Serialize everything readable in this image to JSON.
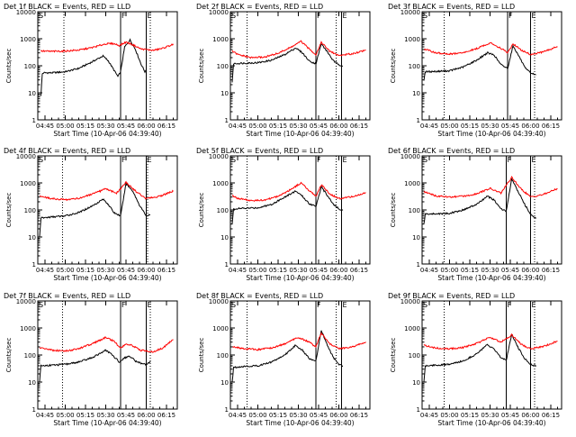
{
  "page": {
    "background": "#ffffff",
    "colors": {
      "events": "#000000",
      "lld": "#ff0000",
      "axes": "#000000"
    }
  },
  "shared": {
    "xlabel": "Start Time (10-Apr-06 04:39:40)",
    "ylabel": "Counts/sec",
    "x_tick_labels": [
      "04:45",
      "05:00",
      "05:15",
      "05:30",
      "05:45",
      "06:00",
      "06:15"
    ],
    "y_tick_labels": [
      "1",
      "10",
      "100",
      "1000",
      "10000"
    ]
  },
  "chart_data": [
    {
      "type": "line",
      "title": "Det 1f BLACK = Events, RED = LLD",
      "xlabel": "Start Time (10-Apr-06 04:39:40)",
      "ylabel": "Counts/sec",
      "x_units": "minutes",
      "x_ticks": [
        "04:45",
        "05:00",
        "05:15",
        "05:30",
        "05:45",
        "06:00",
        "06:15"
      ],
      "xlim": [
        "04:39:40",
        "06:23:00"
      ],
      "ylim": [
        1,
        10000
      ],
      "y_scale": "log",
      "grid": false,
      "legend": "none",
      "dotted_vlines": [
        "04:59",
        "06:03"
      ],
      "solid_vlines": [
        "05:41",
        "06:00"
      ],
      "markers_top": [
        "F",
        "E"
      ],
      "start_marker": "S",
      "series": [
        {
          "name": "BLACK = Events",
          "color": "#000000",
          "x": [
            "04:42",
            "04:43",
            "04:44",
            "04:50",
            "05:00",
            "05:10",
            "05:20",
            "05:28",
            "05:32",
            "05:36",
            "05:39",
            "05:41",
            "05:44",
            "05:48",
            "05:52",
            "05:56",
            "05:59",
            "06:00"
          ],
          "y": [
            8,
            50,
            55,
            55,
            60,
            80,
            140,
            230,
            150,
            70,
            40,
            60,
            500,
            900,
            400,
            120,
            60,
            65
          ]
        },
        {
          "name": "RED = LLD",
          "color": "#ff0000",
          "x": [
            "04:42",
            "04:50",
            "05:00",
            "05:10",
            "05:20",
            "05:30",
            "05:36",
            "05:40",
            "05:45",
            "05:50",
            "05:56",
            "06:05",
            "06:12",
            "06:20"
          ],
          "y": [
            350,
            340,
            350,
            380,
            470,
            650,
            660,
            560,
            750,
            600,
            420,
            370,
            440,
            620
          ]
        }
      ]
    },
    {
      "type": "line",
      "title": "Det 2f BLACK = Events, RED = LLD",
      "xlabel": "Start Time (10-Apr-06 04:39:40)",
      "ylabel": "Counts/sec",
      "x_units": "minutes",
      "x_ticks": [
        "04:45",
        "05:00",
        "05:15",
        "05:30",
        "05:45",
        "06:00",
        "06:15"
      ],
      "xlim": [
        "04:39:40",
        "06:23:00"
      ],
      "ylim": [
        1,
        10000
      ],
      "y_scale": "log",
      "grid": false,
      "legend": "none",
      "dotted_vlines": [
        "04:52",
        "05:58"
      ],
      "solid_vlines": [
        "05:43",
        "06:02"
      ],
      "markers_top": [
        "F",
        "E"
      ],
      "start_marker": "S",
      "series": [
        {
          "name": "BLACK = Events",
          "color": "#000000",
          "x": [
            "04:41",
            "04:42",
            "04:50",
            "05:00",
            "05:10",
            "05:20",
            "05:28",
            "05:33",
            "05:38",
            "05:43",
            "05:47",
            "05:52",
            "05:56",
            "06:00",
            "06:03"
          ],
          "y": [
            25,
            120,
            125,
            130,
            160,
            260,
            460,
            300,
            150,
            120,
            650,
            300,
            150,
            110,
            100
          ]
        },
        {
          "name": "RED = LLD",
          "color": "#ff0000",
          "x": [
            "04:41",
            "04:45",
            "04:55",
            "05:05",
            "05:15",
            "05:25",
            "05:32",
            "05:38",
            "05:43",
            "05:47",
            "05:53",
            "06:00",
            "06:10",
            "06:20"
          ],
          "y": [
            350,
            260,
            200,
            210,
            290,
            500,
            800,
            420,
            260,
            750,
            350,
            240,
            280,
            380
          ]
        }
      ]
    },
    {
      "type": "line",
      "title": "Det 3f BLACK = Events, RED = LLD",
      "xlabel": "Start Time (10-Apr-06 04:39:40)",
      "ylabel": "Counts/sec",
      "x_units": "minutes",
      "x_ticks": [
        "04:45",
        "05:00",
        "05:15",
        "05:30",
        "05:45",
        "06:00",
        "06:15"
      ],
      "xlim": [
        "04:39:40",
        "06:23:00"
      ],
      "ylim": [
        1,
        10000
      ],
      "y_scale": "log",
      "grid": false,
      "legend": "none",
      "dotted_vlines": [
        "04:56",
        "06:03"
      ],
      "solid_vlines": [
        "05:43",
        "06:00"
      ],
      "markers_top": [
        "F",
        "E"
      ],
      "start_marker": "S",
      "series": [
        {
          "name": "BLACK = Events",
          "color": "#000000",
          "x": [
            "04:41",
            "04:42",
            "04:50",
            "05:00",
            "05:10",
            "05:20",
            "05:28",
            "05:33",
            "05:38",
            "05:43",
            "05:47",
            "05:52",
            "05:56",
            "06:00",
            "06:04"
          ],
          "y": [
            30,
            60,
            62,
            65,
            90,
            160,
            300,
            250,
            110,
            80,
            550,
            200,
            80,
            55,
            45
          ]
        },
        {
          "name": "RED = LLD",
          "color": "#ff0000",
          "x": [
            "04:41",
            "04:50",
            "05:00",
            "05:10",
            "05:20",
            "05:30",
            "05:38",
            "05:43",
            "05:47",
            "05:53",
            "06:00",
            "06:10",
            "06:20"
          ],
          "y": [
            420,
            300,
            270,
            300,
            430,
            700,
            450,
            300,
            650,
            380,
            260,
            330,
            520
          ]
        }
      ]
    },
    {
      "type": "line",
      "title": "Det 4f BLACK = Events, RED = LLD",
      "xlabel": "Start Time (10-Apr-06 04:39:40)",
      "ylabel": "Counts/sec",
      "x_units": "minutes",
      "x_ticks": [
        "04:45",
        "05:00",
        "05:15",
        "05:30",
        "05:45",
        "06:00",
        "06:15"
      ],
      "xlim": [
        "04:39:40",
        "06:23:00"
      ],
      "ylim": [
        1,
        10000
      ],
      "y_scale": "log",
      "grid": false,
      "legend": "none",
      "dotted_vlines": [
        "04:58",
        "06:01"
      ],
      "solid_vlines": [
        "05:41",
        "06:00"
      ],
      "markers_top": [
        "F",
        "E"
      ],
      "start_marker": "S",
      "series": [
        {
          "name": "BLACK = Events",
          "color": "#000000",
          "x": [
            "04:41",
            "04:42",
            "04:50",
            "05:00",
            "05:10",
            "05:20",
            "05:28",
            "05:32",
            "05:36",
            "05:41",
            "05:45",
            "05:50",
            "05:55",
            "06:00",
            "06:03"
          ],
          "y": [
            10,
            50,
            55,
            60,
            80,
            140,
            250,
            160,
            80,
            60,
            950,
            500,
            150,
            60,
            65
          ]
        },
        {
          "name": "RED = LLD",
          "color": "#ff0000",
          "x": [
            "04:41",
            "04:50",
            "05:00",
            "05:10",
            "05:20",
            "05:30",
            "05:38",
            "05:45",
            "05:52",
            "06:00",
            "06:10",
            "06:20"
          ],
          "y": [
            330,
            260,
            240,
            270,
            380,
            600,
            420,
            1050,
            500,
            260,
            320,
            500
          ]
        }
      ]
    },
    {
      "type": "line",
      "title": "Det 5f BLACK = Events, RED = LLD",
      "xlabel": "Start Time (10-Apr-06 04:39:40)",
      "ylabel": "Counts/sec",
      "x_units": "minutes",
      "x_ticks": [
        "04:45",
        "05:00",
        "05:15",
        "05:30",
        "05:45",
        "06:00",
        "06:15"
      ],
      "xlim": [
        "04:39:40",
        "06:23:00"
      ],
      "ylim": [
        1,
        10000
      ],
      "y_scale": "log",
      "grid": false,
      "legend": "none",
      "dotted_vlines": [
        "04:52",
        "05:58"
      ],
      "solid_vlines": [
        "05:43",
        "06:02"
      ],
      "markers_top": [
        "F",
        "E"
      ],
      "start_marker": "S",
      "series": [
        {
          "name": "BLACK = Events",
          "color": "#000000",
          "x": [
            "04:41",
            "04:42",
            "04:50",
            "05:00",
            "05:10",
            "05:20",
            "05:28",
            "05:33",
            "05:38",
            "05:43",
            "05:47",
            "05:52",
            "05:56",
            "06:00",
            "06:03"
          ],
          "y": [
            30,
            110,
            115,
            120,
            160,
            300,
            500,
            320,
            170,
            140,
            700,
            320,
            160,
            110,
            100
          ]
        },
        {
          "name": "RED = LLD",
          "color": "#ff0000",
          "x": [
            "04:41",
            "04:45",
            "04:55",
            "05:05",
            "05:15",
            "05:25",
            "05:32",
            "05:38",
            "05:43",
            "05:47",
            "05:53",
            "06:00",
            "06:10",
            "06:20"
          ],
          "y": [
            340,
            270,
            220,
            230,
            320,
            600,
            1000,
            520,
            320,
            850,
            400,
            260,
            310,
            430
          ]
        }
      ]
    },
    {
      "type": "line",
      "title": "Det 6f BLACK = Events, RED = LLD",
      "xlabel": "Start Time (10-Apr-06 04:39:40)",
      "ylabel": "Counts/sec",
      "x_units": "minutes",
      "x_ticks": [
        "04:45",
        "05:00",
        "05:15",
        "05:30",
        "05:45",
        "06:00",
        "06:15"
      ],
      "xlim": [
        "04:39:40",
        "06:23:00"
      ],
      "ylim": [
        1,
        10000
      ],
      "y_scale": "log",
      "grid": false,
      "legend": "none",
      "dotted_vlines": [
        "04:56",
        "06:03"
      ],
      "solid_vlines": [
        "05:42",
        "06:00"
      ],
      "markers_top": [
        "F",
        "E"
      ],
      "start_marker": "S",
      "series": [
        {
          "name": "BLACK = Events",
          "color": "#000000",
          "x": [
            "04:41",
            "04:42",
            "04:50",
            "05:00",
            "05:10",
            "05:20",
            "05:28",
            "05:33",
            "05:38",
            "05:42",
            "05:46",
            "05:51",
            "05:56",
            "06:00",
            "06:04"
          ],
          "y": [
            30,
            70,
            72,
            75,
            100,
            160,
            320,
            230,
            110,
            90,
            1400,
            450,
            150,
            70,
            50
          ]
        },
        {
          "name": "RED = LLD",
          "color": "#ff0000",
          "x": [
            "04:41",
            "04:50",
            "05:00",
            "05:10",
            "05:20",
            "05:30",
            "05:38",
            "05:46",
            "05:53",
            "06:00",
            "06:10",
            "06:20"
          ],
          "y": [
            470,
            330,
            300,
            320,
            400,
            620,
            420,
            1600,
            600,
            300,
            380,
            620
          ]
        }
      ]
    },
    {
      "type": "line",
      "title": "Det 7f BLACK = Events, RED = LLD",
      "xlabel": "Start Time (10-Apr-06 04:39:40)",
      "ylabel": "Counts/sec",
      "x_units": "minutes",
      "x_ticks": [
        "04:45",
        "05:00",
        "05:15",
        "05:30",
        "05:45",
        "06:00",
        "06:15"
      ],
      "xlim": [
        "04:39:40",
        "06:23:00"
      ],
      "ylim": [
        1,
        10000
      ],
      "y_scale": "log",
      "grid": false,
      "legend": "none",
      "dotted_vlines": [
        "04:58",
        "06:03"
      ],
      "solid_vlines": [
        "05:41",
        "06:00"
      ],
      "markers_top": [
        "F",
        "E"
      ],
      "start_marker": "S",
      "series": [
        {
          "name": "BLACK = Events",
          "color": "#000000",
          "x": [
            "04:41",
            "04:42",
            "04:50",
            "05:00",
            "05:10",
            "05:20",
            "05:30",
            "05:35",
            "05:40",
            "05:44",
            "05:48",
            "05:52",
            "05:56",
            "06:00",
            "06:03"
          ],
          "y": [
            10,
            40,
            42,
            45,
            55,
            80,
            150,
            100,
            55,
            80,
            90,
            60,
            50,
            45,
            55
          ]
        },
        {
          "name": "RED = LLD",
          "color": "#ff0000",
          "x": [
            "04:41",
            "04:50",
            "05:00",
            "05:10",
            "05:20",
            "05:30",
            "05:36",
            "05:41",
            "05:45",
            "05:50",
            "05:56",
            "06:05",
            "06:12",
            "06:20"
          ],
          "y": [
            190,
            150,
            140,
            170,
            260,
            450,
            330,
            180,
            260,
            220,
            150,
            130,
            180,
            370
          ]
        }
      ]
    },
    {
      "type": "line",
      "title": "Det 8f BLACK = Events, RED = LLD",
      "xlabel": "Start Time (10-Apr-06 04:39:40)",
      "ylabel": "Counts/sec",
      "x_units": "minutes",
      "x_ticks": [
        "04:45",
        "05:00",
        "05:15",
        "05:30",
        "05:45",
        "06:00",
        "06:15"
      ],
      "xlim": [
        "04:39:40",
        "06:23:00"
      ],
      "ylim": [
        1,
        10000
      ],
      "y_scale": "log",
      "grid": false,
      "legend": "none",
      "dotted_vlines": [
        "04:52",
        "05:58"
      ],
      "solid_vlines": [
        "05:43",
        "06:02"
      ],
      "markers_top": [
        "F",
        "E"
      ],
      "start_marker": "S",
      "series": [
        {
          "name": "BLACK = Events",
          "color": "#000000",
          "x": [
            "04:41",
            "04:42",
            "04:50",
            "05:00",
            "05:10",
            "05:20",
            "05:28",
            "05:33",
            "05:38",
            "05:43",
            "05:47",
            "05:52",
            "05:56",
            "06:00",
            "06:03"
          ],
          "y": [
            10,
            35,
            38,
            40,
            55,
            100,
            230,
            150,
            75,
            60,
            800,
            200,
            80,
            45,
            40
          ]
        },
        {
          "name": "RED = LLD",
          "color": "#ff0000",
          "x": [
            "04:41",
            "04:50",
            "05:00",
            "05:10",
            "05:20",
            "05:30",
            "05:38",
            "05:43",
            "05:47",
            "05:53",
            "06:00",
            "06:10",
            "06:20"
          ],
          "y": [
            210,
            170,
            160,
            180,
            260,
            450,
            300,
            200,
            650,
            260,
            170,
            200,
            300
          ]
        }
      ]
    },
    {
      "type": "line",
      "title": "Det 9f BLACK = Events, RED = LLD",
      "xlabel": "Start Time (10-Apr-06 04:39:40)",
      "ylabel": "Counts/sec",
      "x_units": "minutes",
      "x_ticks": [
        "04:45",
        "05:00",
        "05:15",
        "05:30",
        "05:45",
        "06:00",
        "06:15"
      ],
      "xlim": [
        "04:39:40",
        "06:23:00"
      ],
      "ylim": [
        1,
        10000
      ],
      "y_scale": "log",
      "grid": false,
      "legend": "none",
      "dotted_vlines": [
        "04:56",
        "06:03"
      ],
      "solid_vlines": [
        "05:42",
        "06:00"
      ],
      "markers_top": [
        "F",
        "E"
      ],
      "start_marker": "S",
      "series": [
        {
          "name": "BLACK = Events",
          "color": "#000000",
          "x": [
            "04:41",
            "04:42",
            "04:50",
            "05:00",
            "05:10",
            "05:20",
            "05:28",
            "05:33",
            "05:38",
            "05:42",
            "05:46",
            "05:51",
            "05:56",
            "06:00",
            "06:04"
          ],
          "y": [
            10,
            40,
            42,
            45,
            60,
            110,
            240,
            160,
            80,
            65,
            600,
            180,
            70,
            45,
            40
          ]
        },
        {
          "name": "RED = LLD",
          "color": "#ff0000",
          "x": [
            "04:41",
            "04:50",
            "05:00",
            "05:10",
            "05:20",
            "05:30",
            "05:38",
            "05:46",
            "05:53",
            "06:00",
            "06:10",
            "06:20"
          ],
          "y": [
            230,
            180,
            170,
            190,
            270,
            450,
            300,
            550,
            250,
            170,
            210,
            330
          ]
        }
      ]
    }
  ]
}
